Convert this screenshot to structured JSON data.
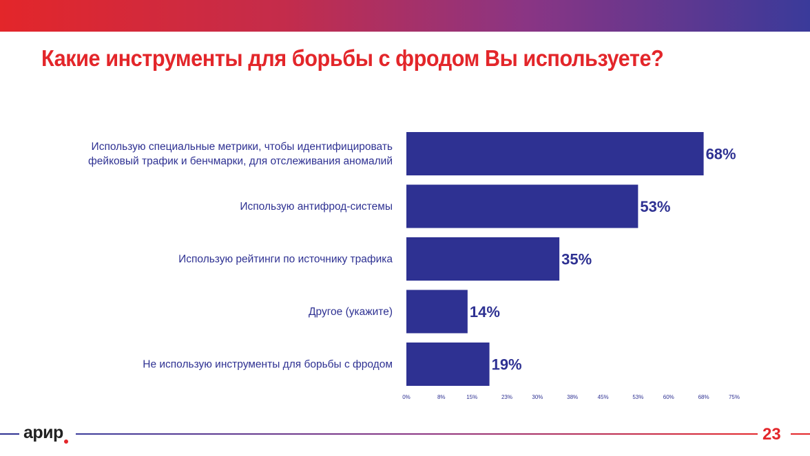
{
  "slide": {
    "title": "Какие инструменты для борьбы с фродом Вы используете?",
    "brand": "арир",
    "page_number": "23"
  },
  "colors": {
    "bar": "#2e3192",
    "title": "#e3262a",
    "text": "#2e3192"
  },
  "chart_data": {
    "type": "bar",
    "orientation": "horizontal",
    "title": "Какие инструменты для борьбы с фродом Вы используете?",
    "categories": [
      [
        "Использую специальные метрики, чтобы идентифицировать",
        "фейковый трафик и бенчмарки, для отслеживания аномалий"
      ],
      [
        "Использую антифрод-системы"
      ],
      [
        "Использую рейтинги по источнику трафика"
      ],
      [
        "Другое (укажите)"
      ],
      [
        "Не использую инструменты для борьбы с фродом"
      ]
    ],
    "values": [
      68,
      53,
      35,
      14,
      19
    ],
    "value_labels": [
      "68%",
      "53%",
      "35%",
      "14%",
      "19%"
    ],
    "xlim": [
      0,
      75
    ],
    "x_ticks": [
      0,
      8,
      15,
      23,
      30,
      38,
      45,
      53,
      60,
      68,
      75
    ],
    "x_tick_labels": [
      "0%",
      "8%",
      "15%",
      "23%",
      "30%",
      "38%",
      "45%",
      "53%",
      "60%",
      "68%",
      "75%"
    ],
    "xlabel": "",
    "ylabel": "",
    "grid": false,
    "legend": "none"
  }
}
